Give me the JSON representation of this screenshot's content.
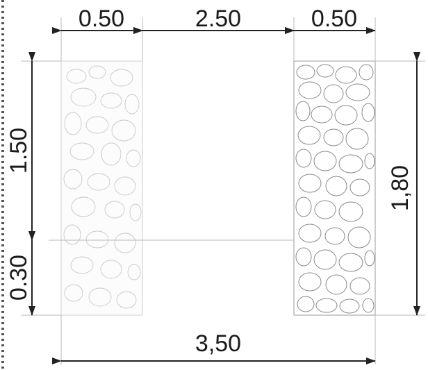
{
  "dimensions": {
    "top_left_wall": "0.50",
    "top_opening": "2.50",
    "top_right_wall": "0.50",
    "left_upper_height": "1.50",
    "left_lower_height": "0.30",
    "right_total_height": "1,80",
    "bottom_total_width": "3,50"
  },
  "colors": {
    "ink": "#1a1a1a",
    "stone_outline": "#8a8a8a",
    "faint_outline": "#c8c8c8",
    "background": "#ffffff"
  }
}
